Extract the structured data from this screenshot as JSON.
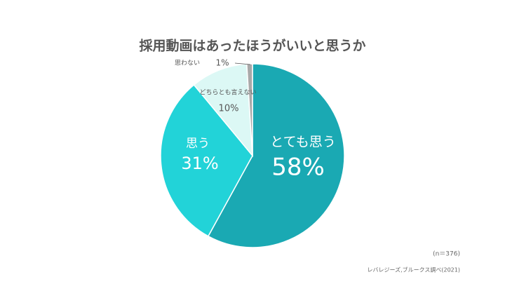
{
  "chart_data": {
    "type": "pie",
    "title": "採用動画はあったほうがいいと思うか",
    "categories": [
      "とても思う",
      "思う",
      "どちらとも言えない",
      "思わない"
    ],
    "values": [
      58,
      31,
      10,
      1
    ],
    "value_labels": [
      "58%",
      "31%",
      "10%",
      "1%"
    ],
    "colors": [
      "#1aa9b3",
      "#22d3d8",
      "#dcf8f5",
      "#a9a9a9"
    ],
    "note": "(n＝376)",
    "source": "レバレジーズ,ブルークス調べ(2021)"
  }
}
